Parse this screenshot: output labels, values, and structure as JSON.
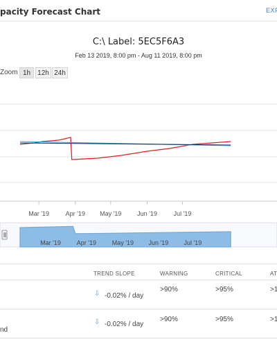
{
  "header": {
    "title": "pacity Forecast Chart",
    "export_label": "EXPORT"
  },
  "chart_data": {
    "type": "line",
    "title": "C:\\ Label: 5EC5F6A3",
    "subtitle": "Feb 13 2019, 8:00 pm - Aug 11 2019, 8:00 pm",
    "x_ticks": [
      "Mar '19",
      "Apr '19",
      "May '19",
      "Jun '19",
      "Jul '19"
    ],
    "navigator_ticks": [
      "Mar '19",
      "Apr '19",
      "May '19",
      "Jun '19",
      "Jul '19"
    ],
    "grid": true,
    "series": [
      {
        "color": "#e02020",
        "x": [
          "2019-02-13",
          "2019-02-25",
          "2019-03-04",
          "2019-03-18",
          "2019-03-28",
          "2019-03-29",
          "2019-04-20",
          "2019-05-10",
          "2019-06-01",
          "2019-06-20",
          "2019-07-10",
          "2019-08-11"
        ],
        "values": [
          0.56,
          0.57,
          0.58,
          0.59,
          0.61,
          0.45,
          0.46,
          0.48,
          0.51,
          0.53,
          0.56,
          0.58
        ]
      },
      {
        "color": "#22aadd",
        "x": [
          "2019-02-13",
          "2019-08-11"
        ],
        "values": [
          0.58,
          0.55
        ]
      },
      {
        "color": "#203060",
        "x": [
          "2019-02-13",
          "2019-08-11"
        ],
        "values": [
          0.57,
          0.555
        ]
      }
    ],
    "navigator": {
      "color": "#7fb1df",
      "x": [
        "2019-02-13",
        "2019-03-30",
        "2019-04-01",
        "2019-08-11"
      ],
      "values": [
        0.8,
        0.85,
        0.55,
        0.63
      ]
    }
  },
  "zoom": {
    "label": "Zoom",
    "options": [
      "1h",
      "12h",
      "24h"
    ]
  },
  "table": {
    "headers": {
      "trend_slope": "TREND SLOPE",
      "warning": "WARNING",
      "critical": "CRITICAL",
      "at": "AT"
    },
    "rows": [
      {
        "name": "",
        "trend_slope": "-0.02% / day",
        "warning": ">90%",
        "critical": ">95%",
        "at": ">1"
      },
      {
        "name": "nd",
        "trend_slope": "-0.02% / day",
        "warning": ">90%",
        "critical": ">95%",
        "at": ">1"
      }
    ]
  },
  "icons": {
    "trend": "trend-down-arrow-icon"
  }
}
